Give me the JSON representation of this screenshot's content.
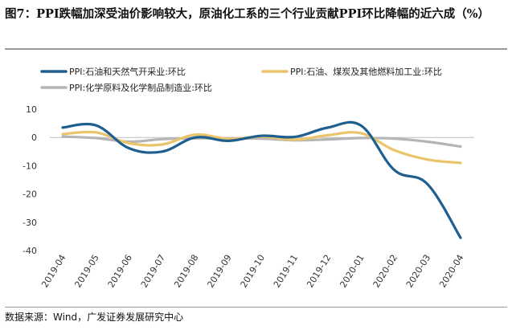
{
  "figure": {
    "title": "图7：PPI跌幅加深受油价影响较大，原油化工系的三个行业贡献PPI环比降幅的近六成（%）",
    "source": "数据来源：Wind，广发证券发展研究中心"
  },
  "chart_data": {
    "type": "line",
    "title": "",
    "xlabel": "",
    "ylabel": "",
    "ylim": [
      -40,
      10
    ],
    "yticks": [
      10,
      0,
      -10,
      -20,
      -30,
      -40
    ],
    "legend_position": "top",
    "grid": false,
    "categories": [
      "2019-04",
      "2019-05",
      "2019-06",
      "2019-07",
      "2019-08",
      "2019-09",
      "2019-10",
      "2019-11",
      "2019-12",
      "2020-01",
      "2020-02",
      "2020-03",
      "2020-04"
    ],
    "series": [
      {
        "name": "PPI:石油和天然气开采业:环比",
        "color": "#1f5f8f",
        "values": [
          3.5,
          4.3,
          -3.8,
          -5.0,
          0.0,
          -1.2,
          0.6,
          0.2,
          3.5,
          4.2,
          -11.5,
          -16.5,
          -35.5
        ]
      },
      {
        "name": "PPI:石油、煤炭及其他燃料加工业:环比",
        "color": "#e9c46a",
        "values": [
          1.2,
          1.8,
          -2.0,
          -2.5,
          1.0,
          -0.5,
          0.3,
          -0.8,
          0.8,
          1.5,
          -4.5,
          -7.8,
          -9.0
        ]
      },
      {
        "name": "PPI:化学原料及化学制品制造业:环比",
        "color": "#b5b5b5",
        "values": [
          0.3,
          -0.2,
          -1.5,
          -0.6,
          -0.3,
          -0.3,
          -0.4,
          -1.0,
          -0.7,
          -0.2,
          -0.4,
          -1.5,
          -3.2
        ]
      }
    ]
  }
}
